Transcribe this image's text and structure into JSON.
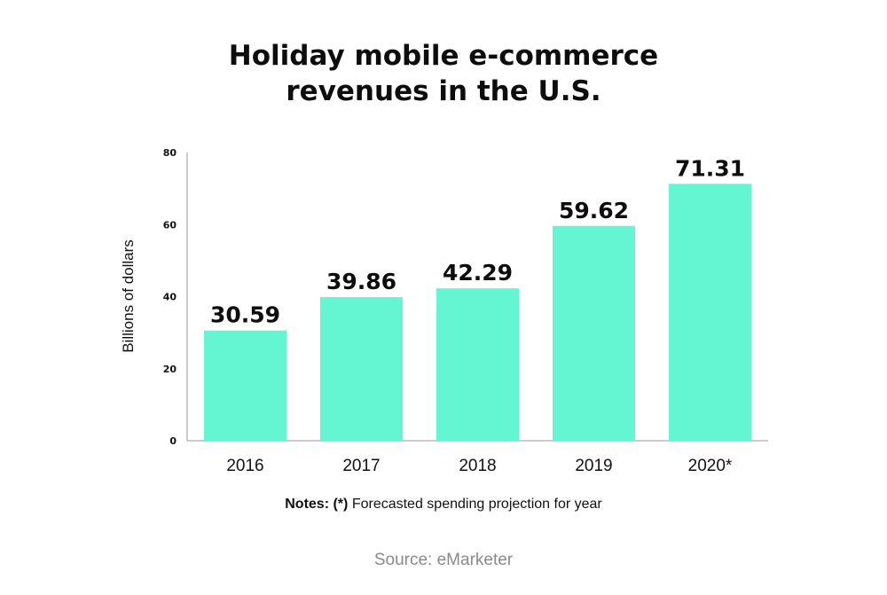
{
  "chart_data": {
    "type": "bar",
    "title_lines": [
      "Holiday mobile e-commerce",
      "revenues in the U.S."
    ],
    "categories": [
      "2016",
      "2017",
      "2018",
      "2019",
      "2020*"
    ],
    "values": [
      30.59,
      39.86,
      42.29,
      59.62,
      71.31
    ],
    "value_labels": [
      "30.59",
      "39.86",
      "42.29",
      "59.62",
      "71.31"
    ],
    "xlabel": "",
    "ylabel": "Billions of dollars",
    "ylim": [
      0,
      80
    ],
    "yticks": [
      0,
      20,
      40,
      60,
      80
    ],
    "grid": false,
    "bar_color": "#64f5d2"
  },
  "notes": {
    "label": "Notes:",
    "marker": "(*)",
    "text": "Forecasted spending projection for year"
  },
  "source": "Source: eMarketer"
}
